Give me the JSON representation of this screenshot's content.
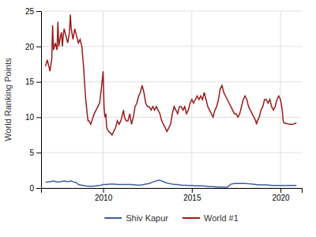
{
  "chart_data": {
    "type": "line",
    "ylabel": "World Ranking Points",
    "xlim": [
      2006.5,
      2021.2
    ],
    "ylim": [
      0,
      25
    ],
    "xticks": [
      2010,
      2015,
      2020
    ],
    "yticks": [
      0,
      5,
      10,
      15,
      20,
      25
    ],
    "grid": true,
    "legend": "bottom",
    "series": [
      {
        "name": "Shiv Kapur",
        "color": "#3c5fa0",
        "x": [
          2006.75,
          2007.0,
          2007.2,
          2007.4,
          2007.6,
          2007.8,
          2008.0,
          2008.2,
          2008.4,
          2008.5,
          2008.6,
          2008.8,
          2009.0,
          2009.2,
          2009.4,
          2009.6,
          2009.8,
          2010.0,
          2010.2,
          2010.4,
          2010.6,
          2010.8,
          2011.0,
          2011.2,
          2011.4,
          2011.6,
          2011.8,
          2012.0,
          2012.2,
          2012.4,
          2012.6,
          2012.8,
          2013.0,
          2013.1,
          2013.2,
          2013.4,
          2013.6,
          2013.8,
          2014.0,
          2014.2,
          2014.4,
          2014.6,
          2014.8,
          2015.0,
          2015.2,
          2015.4,
          2015.6,
          2015.8,
          2016.0,
          2016.2,
          2016.4,
          2016.6,
          2016.8,
          2017.0,
          2017.2,
          2017.4,
          2017.6,
          2017.8,
          2018.0,
          2018.2,
          2018.4,
          2018.6,
          2018.8,
          2019.0,
          2019.2,
          2019.4,
          2019.6,
          2019.8,
          2020.0,
          2020.3,
          2020.6,
          2020.9
        ],
        "values": [
          0.8,
          0.9,
          1.0,
          0.85,
          0.9,
          1.0,
          0.9,
          1.0,
          0.8,
          0.75,
          0.5,
          0.4,
          0.3,
          0.25,
          0.25,
          0.3,
          0.35,
          0.5,
          0.5,
          0.55,
          0.55,
          0.5,
          0.5,
          0.5,
          0.5,
          0.5,
          0.45,
          0.4,
          0.45,
          0.55,
          0.65,
          0.85,
          1.0,
          1.1,
          1.1,
          0.9,
          0.7,
          0.6,
          0.5,
          0.5,
          0.4,
          0.4,
          0.35,
          0.35,
          0.3,
          0.3,
          0.3,
          0.25,
          0.2,
          0.2,
          0.15,
          0.15,
          0.1,
          0.1,
          0.55,
          0.65,
          0.65,
          0.65,
          0.65,
          0.6,
          0.55,
          0.5,
          0.45,
          0.45,
          0.45,
          0.4,
          0.35,
          0.35,
          0.35,
          0.35,
          0.35,
          0.35
        ]
      },
      {
        "name": "World #1",
        "color": "#9b1c1c",
        "x": [
          2006.75,
          2006.85,
          2007.0,
          2007.1,
          2007.15,
          2007.2,
          2007.3,
          2007.4,
          2007.45,
          2007.5,
          2007.6,
          2007.65,
          2007.7,
          2007.75,
          2007.8,
          2007.9,
          2008.0,
          2008.1,
          2008.15,
          2008.2,
          2008.3,
          2008.4,
          2008.5,
          2008.6,
          2008.7,
          2008.8,
          2008.9,
          2009.0,
          2009.1,
          2009.15,
          2009.2,
          2009.3,
          2009.4,
          2009.5,
          2009.6,
          2009.7,
          2009.8,
          2009.9,
          2010.0,
          2010.05,
          2010.1,
          2010.15,
          2010.2,
          2010.3,
          2010.4,
          2010.5,
          2010.6,
          2010.7,
          2010.8,
          2010.9,
          2011.0,
          2011.1,
          2011.15,
          2011.2,
          2011.3,
          2011.4,
          2011.5,
          2011.6,
          2011.7,
          2011.8,
          2011.9,
          2012.0,
          2012.1,
          2012.2,
          2012.3,
          2012.4,
          2012.5,
          2012.6,
          2012.7,
          2012.8,
          2012.9,
          2013.0,
          2013.1,
          2013.2,
          2013.3,
          2013.4,
          2013.5,
          2013.6,
          2013.7,
          2013.8,
          2013.9,
          2014.0,
          2014.1,
          2014.2,
          2014.3,
          2014.4,
          2014.5,
          2014.6,
          2014.7,
          2014.8,
          2014.9,
          2015.0,
          2015.1,
          2015.2,
          2015.3,
          2015.4,
          2015.5,
          2015.6,
          2015.7,
          2015.8,
          2015.9,
          2016.0,
          2016.1,
          2016.2,
          2016.3,
          2016.4,
          2016.5,
          2016.6,
          2016.7,
          2016.8,
          2016.9,
          2017.0,
          2017.1,
          2017.2,
          2017.3,
          2017.4,
          2017.5,
          2017.6,
          2017.7,
          2017.8,
          2017.9,
          2018.0,
          2018.1,
          2018.2,
          2018.3,
          2018.4,
          2018.5,
          2018.6,
          2018.65,
          2018.7,
          2018.8,
          2018.9,
          2019.0,
          2019.1,
          2019.2,
          2019.3,
          2019.4,
          2019.5,
          2019.6,
          2019.7,
          2019.8,
          2019.9,
          2020.0,
          2020.1,
          2020.15,
          2020.2,
          2020.5,
          2020.7,
          2020.9
        ],
        "values": [
          17.2,
          18.1,
          16.5,
          18.2,
          23.0,
          19.5,
          20.5,
          19.5,
          23.5,
          20.0,
          21.5,
          22.0,
          20.0,
          21.5,
          22.5,
          21.5,
          20.5,
          22.0,
          24.5,
          22.5,
          21.0,
          22.5,
          21.5,
          20.5,
          21.0,
          20.0,
          17.0,
          13.0,
          10.5,
          9.5,
          9.5,
          9.0,
          9.8,
          10.5,
          11.0,
          11.5,
          12.0,
          14.0,
          16.5,
          11.5,
          10.0,
          10.5,
          8.5,
          8.0,
          7.8,
          7.5,
          8.0,
          8.5,
          9.5,
          9.0,
          9.5,
          10.5,
          11.0,
          10.0,
          9.5,
          9.5,
          10.5,
          9.0,
          10.0,
          11.5,
          12.0,
          13.0,
          13.5,
          14.5,
          13.5,
          12.0,
          11.5,
          11.5,
          11.0,
          11.5,
          11.0,
          11.5,
          11.0,
          10.5,
          9.5,
          9.0,
          8.5,
          8.0,
          8.5,
          9.0,
          10.5,
          11.5,
          11.0,
          10.5,
          11.5,
          11.5,
          11.0,
          11.5,
          10.5,
          11.0,
          12.0,
          12.5,
          12.0,
          12.5,
          13.0,
          12.5,
          13.0,
          12.5,
          13.5,
          12.5,
          11.5,
          11.0,
          10.5,
          10.0,
          11.0,
          11.5,
          12.5,
          14.0,
          14.5,
          13.5,
          13.0,
          12.5,
          12.0,
          11.5,
          11.0,
          10.5,
          10.5,
          10.0,
          10.5,
          11.5,
          12.5,
          13.0,
          12.5,
          11.5,
          11.0,
          10.5,
          10.0,
          9.5,
          9.0,
          9.5,
          10.0,
          11.0,
          11.5,
          12.5,
          12.5,
          12.0,
          12.5,
          11.5,
          11.0,
          11.5,
          12.5,
          13.0,
          12.5,
          11.0,
          9.5,
          9.2,
          9.0,
          9.0,
          9.2
        ]
      }
    ]
  }
}
